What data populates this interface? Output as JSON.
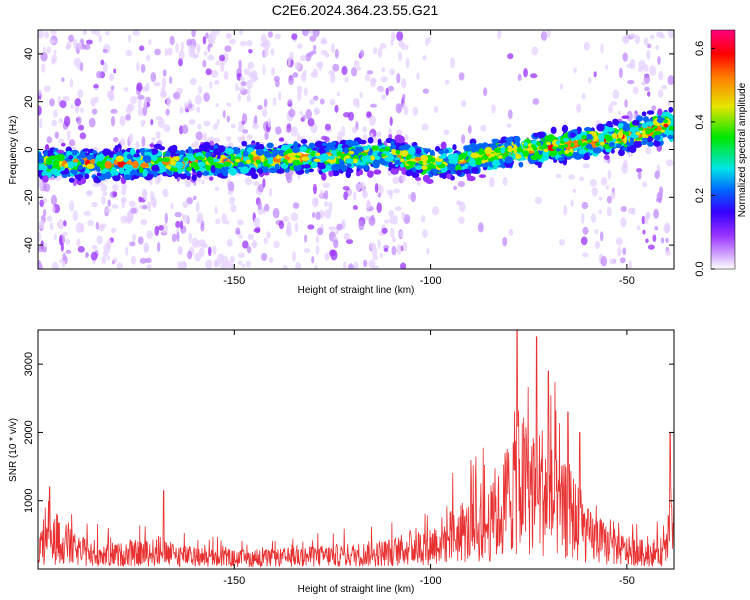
{
  "title": "C2E6.2024.364.23.55.G21",
  "chart_data": [
    {
      "type": "heatmap",
      "xlabel": "Height of straight line (km)",
      "ylabel": "Frequency (Hz)",
      "xlim": [
        -200,
        -38
      ],
      "ylim": [
        -50,
        50
      ],
      "xticks": [
        -150,
        -100,
        -50
      ],
      "yticks": [
        -40,
        -20,
        0,
        20,
        40
      ],
      "ridge": {
        "x": [
          -200,
          -180,
          -160,
          -140,
          -120,
          -110,
          -100,
          -90,
          -80,
          -70,
          -60,
          -50,
          -40
        ],
        "center_hz": [
          -6,
          -6,
          -5,
          -4,
          -3,
          -2,
          -6,
          -4,
          -1,
          1,
          3,
          6,
          10
        ]
      },
      "colorbar": {
        "label": "Normalized spectral amplitude",
        "min": 0.0,
        "max": 0.65,
        "ticks": [
          "0.0",
          "0.2",
          "0.4",
          "0.6"
        ],
        "colors": [
          "#ffffff",
          "#9933ff",
          "#3300ff",
          "#0066ff",
          "#00e5e5",
          "#00e600",
          "#e5e500",
          "#ff8000",
          "#ff0000",
          "#ff0080"
        ]
      }
    },
    {
      "type": "line",
      "xlabel": "Height of straight line (km)",
      "ylabel": "SNR (10 * v/v)",
      "xlim": [
        -200,
        -38
      ],
      "ylim": [
        0,
        3500
      ],
      "xticks": [
        -150,
        -100,
        -50
      ],
      "yticks": [
        1000,
        2000,
        3000
      ],
      "color": "#e83030",
      "envelope": {
        "x": [
          -200,
          -195,
          -190,
          -180,
          -170,
          -160,
          -150,
          -140,
          -130,
          -120,
          -110,
          -105,
          -100,
          -95,
          -90,
          -85,
          -82,
          -80,
          -78,
          -75,
          -72,
          -70,
          -67,
          -65,
          -62,
          -60,
          -55,
          -50,
          -45,
          -40,
          -38
        ],
        "y": [
          500,
          800,
          480,
          380,
          450,
          320,
          280,
          290,
          340,
          380,
          450,
          560,
          650,
          880,
          1000,
          1200,
          1500,
          2100,
          2400,
          2200,
          2200,
          2000,
          1500,
          1600,
          1200,
          900,
          650,
          480,
          420,
          480,
          1700
        ]
      },
      "peaks": [
        {
          "x": -197,
          "y": 1200
        },
        {
          "x": -168,
          "y": 1150
        },
        {
          "x": -78,
          "y": 3500
        },
        {
          "x": -73,
          "y": 3400
        },
        {
          "x": -70,
          "y": 2900
        },
        {
          "x": -65,
          "y": 2300
        },
        {
          "x": -62,
          "y": 2000
        },
        {
          "x": -39,
          "y": 2000
        }
      ]
    }
  ]
}
